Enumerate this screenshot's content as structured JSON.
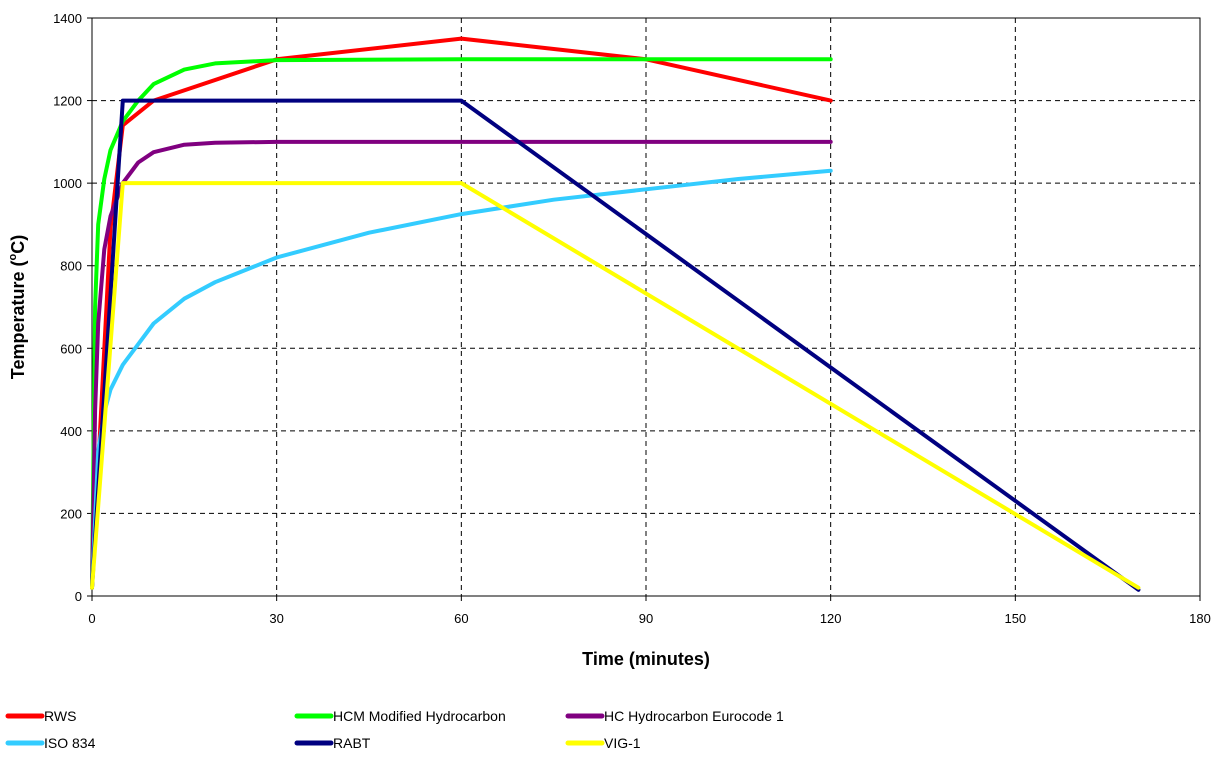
{
  "chart_data": {
    "type": "line",
    "xlabel": "Time (minutes)",
    "ylabel": {
      "pre": "Temperature (",
      "sup": "o",
      "post": "C)"
    },
    "xlim": [
      0,
      180
    ],
    "ylim": [
      0,
      1400
    ],
    "xticks": [
      0,
      30,
      60,
      90,
      120,
      150,
      180
    ],
    "yticks": [
      0,
      200,
      400,
      600,
      800,
      1000,
      1200,
      1400
    ],
    "grid": true,
    "legend_position": "bottom",
    "series": [
      {
        "name": "RWS",
        "color": "#ff0000",
        "x": [
          0,
          3,
          5,
          10,
          30,
          60,
          90,
          120
        ],
        "y": [
          20,
          890,
          1140,
          1200,
          1300,
          1350,
          1300,
          1200
        ]
      },
      {
        "name": "HCM Modified Hydrocarbon",
        "color": "#00ff00",
        "x": [
          0,
          0.5,
          1,
          2,
          3,
          5,
          7.5,
          10,
          15,
          20,
          30,
          60,
          120
        ],
        "y": [
          20,
          700,
          900,
          1010,
          1080,
          1150,
          1200,
          1240,
          1275,
          1290,
          1298,
          1300,
          1300
        ]
      },
      {
        "name": "HC Hydrocarbon Eurocode 1",
        "color": "#800080",
        "x": [
          0,
          0.5,
          1,
          2,
          3,
          5,
          7.5,
          10,
          15,
          20,
          30,
          60,
          120
        ],
        "y": [
          20,
          450,
          660,
          840,
          920,
          1000,
          1050,
          1075,
          1093,
          1098,
          1100,
          1100,
          1100
        ]
      },
      {
        "name": "ISO 834",
        "color": "#33ccff",
        "x": [
          0,
          1,
          2,
          3,
          5,
          7.5,
          10,
          15,
          20,
          30,
          45,
          60,
          75,
          90,
          105,
          120
        ],
        "y": [
          20,
          350,
          445,
          500,
          560,
          610,
          660,
          720,
          760,
          820,
          880,
          925,
          960,
          985,
          1010,
          1030
        ]
      },
      {
        "name": "RABT",
        "color": "#000080",
        "x": [
          0,
          5,
          60,
          170
        ],
        "y": [
          20,
          1200,
          1200,
          15
        ]
      },
      {
        "name": "VIG-1",
        "color": "#ffff00",
        "x": [
          0,
          5,
          60,
          170
        ],
        "y": [
          20,
          1000,
          1000,
          20
        ]
      }
    ]
  }
}
